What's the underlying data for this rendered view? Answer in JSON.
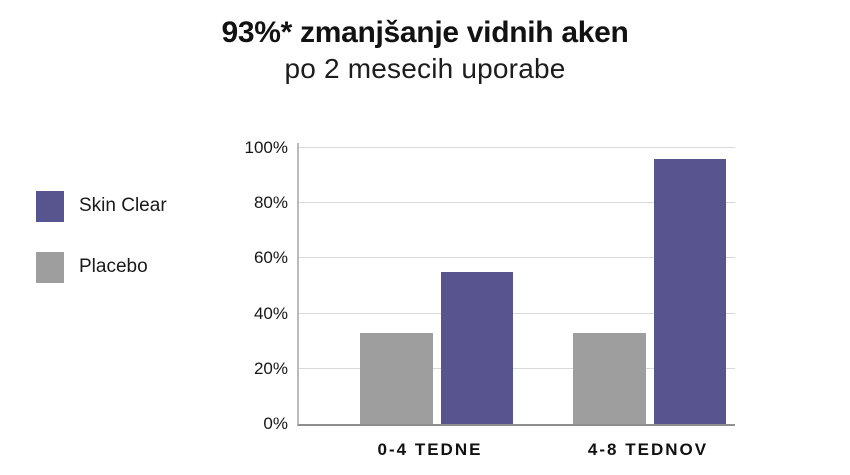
{
  "chart_data": {
    "type": "bar",
    "title": "93%* zmanjšanje vidnih aken",
    "subtitle": "po 2 mesecih uporabe",
    "categories": [
      "0-4 TEDNE",
      "4-8 TEDNOV"
    ],
    "series": [
      {
        "name": "Skin Clear",
        "color": "#585490",
        "values": [
          55,
          96
        ]
      },
      {
        "name": "Placebo",
        "color": "#9e9e9e",
        "values": [
          33,
          33
        ]
      }
    ],
    "xlabel": "",
    "ylabel": "",
    "ylim": [
      0,
      100
    ],
    "y_ticks": [
      "0%",
      "20%",
      "40%",
      "60%",
      "80%",
      "100%"
    ],
    "grid": true,
    "legend_position": "left",
    "background_color": "#ffffff",
    "gridline_color": "#d9d9d9",
    "axis_color": "#8e8e8e",
    "text_color": "#121212"
  }
}
